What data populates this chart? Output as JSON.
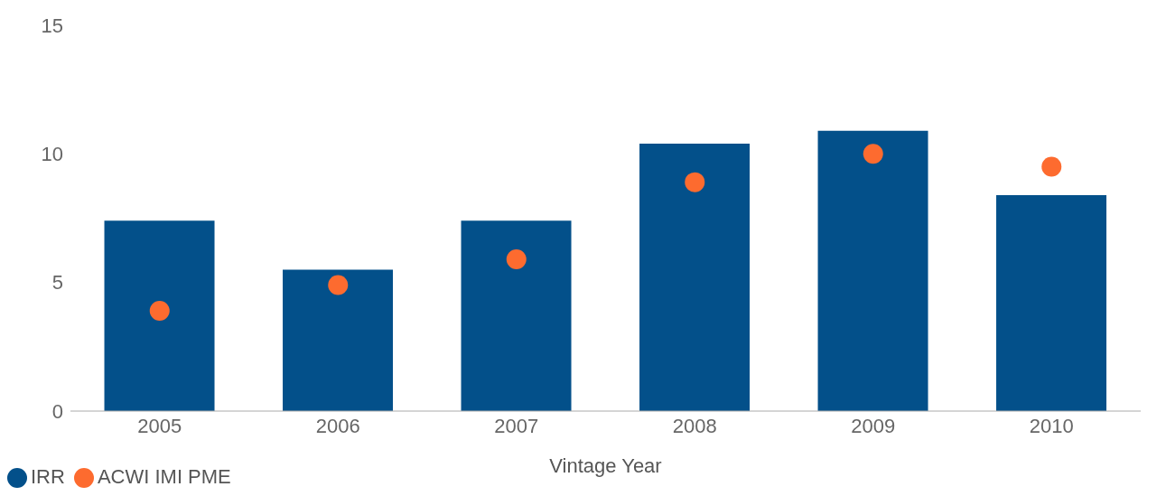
{
  "chart_data": {
    "type": "bar",
    "xlabel": "Vintage Year",
    "categories": [
      "2005",
      "2006",
      "2007",
      "2008",
      "2009",
      "2010"
    ],
    "series": [
      {
        "name": "IRR",
        "color": "#03508a",
        "values": [
          7.4,
          5.5,
          7.4,
          10.4,
          10.9,
          8.4
        ]
      },
      {
        "name": "ACWI IMI PME",
        "type": "scatter",
        "color": "#fd6b2f",
        "values": [
          3.9,
          4.9,
          5.9,
          8.9,
          10.0,
          9.5
        ]
      }
    ],
    "ylim": [
      0,
      15
    ],
    "yticks": [
      0,
      5,
      10,
      15
    ],
    "grid": false,
    "legend": "bottom left",
    "marker": "circle"
  }
}
